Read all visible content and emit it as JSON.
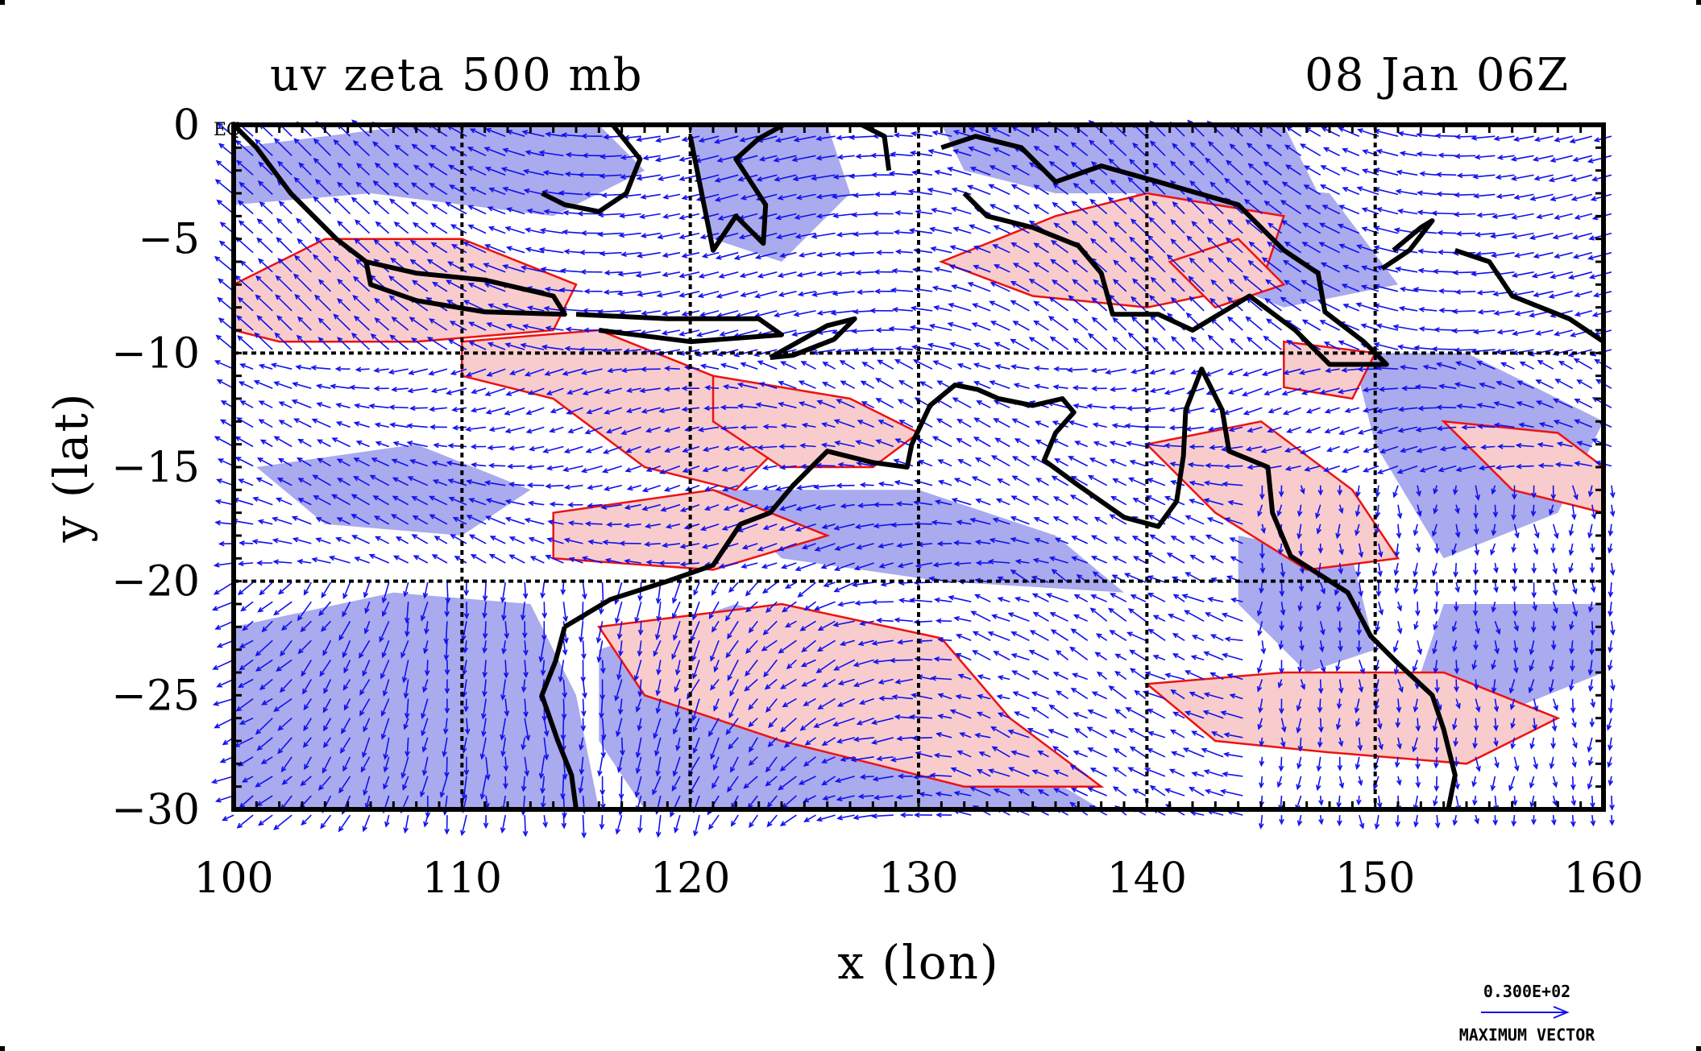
{
  "title_left": "uv zeta 500 mb",
  "title_right": "08 Jan 06Z",
  "equator_label": "EQ",
  "xlabel": "x (lon)",
  "ylabel": "y (lat)",
  "vector_legend": {
    "value": "0.300E+02",
    "label": "MAXIMUM VECTOR"
  },
  "colors": {
    "positive_fill": "#f8cccc",
    "positive_contour": "#ee1111",
    "negative_fill": "#aaaaee",
    "vector": "#1111ee",
    "coast": "#000000"
  },
  "chart_data": {
    "type": "map",
    "title": "uv zeta 500 mb",
    "xlabel": "x (lon)",
    "ylabel": "y (lat)",
    "xlim": [
      100,
      160
    ],
    "ylim": [
      -30,
      0
    ],
    "xticks": [
      100,
      110,
      120,
      130,
      140,
      150,
      160
    ],
    "yticks": [
      0,
      -5,
      -10,
      -15,
      -20,
      -25,
      -30
    ],
    "xtick_labels": [
      "100",
      "110",
      "120",
      "130",
      "140",
      "150",
      "160"
    ],
    "ytick_labels": [
      "0",
      "−5",
      "−10",
      "−15",
      "−20",
      "−25",
      "−30"
    ],
    "gridlines_lon": [
      110,
      120,
      130,
      140,
      150
    ],
    "gridlines_lat": [
      -10,
      -20
    ],
    "grid": true,
    "max_vector": "0.300E+02",
    "positive_vorticity_regions": [
      [
        [
          100,
          -7
        ],
        [
          104,
          -5
        ],
        [
          110,
          -5
        ],
        [
          115,
          -7
        ],
        [
          114,
          -9
        ],
        [
          108,
          -9.5
        ],
        [
          102,
          -9.5
        ],
        [
          100,
          -9
        ]
      ],
      [
        [
          110,
          -9.5
        ],
        [
          116,
          -9
        ],
        [
          121,
          -11
        ],
        [
          124,
          -14
        ],
        [
          122,
          -16
        ],
        [
          118,
          -15
        ],
        [
          114,
          -12
        ],
        [
          110,
          -11
        ]
      ],
      [
        [
          121,
          -11
        ],
        [
          127,
          -12
        ],
        [
          130,
          -13.5
        ],
        [
          128,
          -15
        ],
        [
          124,
          -15
        ],
        [
          121,
          -13
        ]
      ],
      [
        [
          114,
          -17
        ],
        [
          121,
          -16
        ],
        [
          126,
          -18
        ],
        [
          121,
          -19.5
        ],
        [
          114,
          -19
        ]
      ],
      [
        [
          116,
          -22
        ],
        [
          124,
          -21
        ],
        [
          131,
          -22.5
        ],
        [
          134,
          -26
        ],
        [
          138,
          -29
        ],
        [
          132,
          -29
        ],
        [
          124,
          -27
        ],
        [
          118,
          -25
        ]
      ],
      [
        [
          140,
          -14
        ],
        [
          145,
          -13
        ],
        [
          149,
          -16
        ],
        [
          151,
          -19
        ],
        [
          147,
          -19.5
        ],
        [
          143,
          -17
        ]
      ],
      [
        [
          140,
          -24.5
        ],
        [
          146,
          -24
        ],
        [
          153,
          -24
        ],
        [
          158,
          -26
        ],
        [
          154,
          -28
        ],
        [
          148,
          -27.5
        ],
        [
          143,
          -27
        ]
      ],
      [
        [
          153,
          -13
        ],
        [
          158,
          -13.5
        ],
        [
          160,
          -15
        ],
        [
          160,
          -17
        ],
        [
          156,
          -16
        ]
      ],
      [
        [
          131,
          -6
        ],
        [
          136,
          -4
        ],
        [
          140,
          -3
        ],
        [
          146,
          -4
        ],
        [
          145,
          -7
        ],
        [
          140,
          -8
        ],
        [
          135,
          -7.5
        ]
      ],
      [
        [
          146,
          -9.5
        ],
        [
          150,
          -10
        ],
        [
          149,
          -12
        ],
        [
          146,
          -11.5
        ]
      ],
      [
        [
          141,
          -6
        ],
        [
          144,
          -5
        ],
        [
          146,
          -7
        ],
        [
          143,
          -8
        ]
      ]
    ],
    "negative_vorticity_regions": [
      [
        [
          100,
          -22
        ],
        [
          107,
          -20.5
        ],
        [
          113,
          -21
        ],
        [
          115,
          -25
        ],
        [
          116,
          -30
        ],
        [
          100,
          -30
        ]
      ],
      [
        [
          116,
          -23
        ],
        [
          122,
          -21
        ],
        [
          128,
          -23
        ],
        [
          133,
          -27
        ],
        [
          138,
          -30
        ],
        [
          118,
          -30
        ],
        [
          116,
          -27
        ]
      ],
      [
        [
          120,
          0
        ],
        [
          126,
          0
        ],
        [
          127,
          -3
        ],
        [
          124,
          -6
        ],
        [
          121,
          -5
        ]
      ],
      [
        [
          131,
          0
        ],
        [
          146,
          0
        ],
        [
          148,
          -4
        ],
        [
          142,
          -3
        ],
        [
          136,
          -3
        ],
        [
          132,
          -2
        ]
      ],
      [
        [
          139,
          -2
        ],
        [
          148,
          -3
        ],
        [
          151,
          -7
        ],
        [
          146,
          -8
        ],
        [
          141,
          -6
        ]
      ],
      [
        [
          149,
          -10
        ],
        [
          154,
          -10
        ],
        [
          160,
          -13
        ],
        [
          158,
          -17
        ],
        [
          153,
          -19
        ],
        [
          150,
          -14
        ]
      ],
      [
        [
          144,
          -18
        ],
        [
          149,
          -19
        ],
        [
          150,
          -23
        ],
        [
          147,
          -24
        ],
        [
          144,
          -21
        ]
      ],
      [
        [
          153,
          -21
        ],
        [
          160,
          -21
        ],
        [
          160,
          -24
        ],
        [
          155,
          -26
        ],
        [
          152,
          -24
        ]
      ],
      [
        [
          100,
          -1
        ],
        [
          108,
          0
        ],
        [
          116,
          0
        ],
        [
          118,
          -2
        ],
        [
          114,
          -4
        ],
        [
          106,
          -3
        ],
        [
          100,
          -3.5
        ]
      ],
      [
        [
          121,
          -16
        ],
        [
          130,
          -16
        ],
        [
          136,
          -18
        ],
        [
          139,
          -20.5
        ],
        [
          131,
          -20
        ],
        [
          124,
          -19
        ]
      ],
      [
        [
          101,
          -15
        ],
        [
          108,
          -14
        ],
        [
          113,
          -16
        ],
        [
          110,
          -18
        ],
        [
          104,
          -17.5
        ]
      ]
    ],
    "coastlines": [
      [
        [
          100,
          0
        ],
        [
          101,
          -1
        ],
        [
          102.5,
          -3
        ],
        [
          104.5,
          -5
        ],
        [
          105.8,
          -6
        ]
      ],
      [
        [
          105.8,
          -6
        ],
        [
          108,
          -6.5
        ],
        [
          111,
          -6.8
        ],
        [
          114,
          -7.5
        ],
        [
          114.5,
          -8.3
        ],
        [
          111,
          -8.2
        ],
        [
          108,
          -7.7
        ],
        [
          106,
          -7
        ],
        [
          105.8,
          -6
        ]
      ],
      [
        [
          115,
          -8.3
        ],
        [
          119,
          -8.5
        ],
        [
          123,
          -8.5
        ],
        [
          124,
          -9.2
        ],
        [
          120,
          -9.5
        ],
        [
          116,
          -9
        ]
      ],
      [
        [
          123.5,
          -10.2
        ],
        [
          126,
          -8.8
        ],
        [
          127.2,
          -8.5
        ],
        [
          126.3,
          -9.4
        ],
        [
          124.5,
          -10.1
        ],
        [
          123.5,
          -10.2
        ]
      ],
      [
        [
          116.6,
          0
        ],
        [
          117.8,
          -1.5
        ],
        [
          117.2,
          -3
        ],
        [
          116,
          -3.8
        ],
        [
          114.5,
          -3.5
        ],
        [
          113.5,
          -3
        ]
      ],
      [
        [
          120,
          -0.5
        ],
        [
          120.5,
          -3
        ],
        [
          121,
          -5.5
        ],
        [
          122,
          -4
        ],
        [
          123.2,
          -5.2
        ],
        [
          123.3,
          -3.5
        ],
        [
          122,
          -1.5
        ],
        [
          123,
          -0.6
        ],
        [
          125,
          0.5
        ]
      ],
      [
        [
          127.5,
          0
        ],
        [
          128.5,
          -0.5
        ],
        [
          128.7,
          -2
        ]
      ],
      [
        [
          131,
          -1
        ],
        [
          132.5,
          -0.5
        ],
        [
          134.5,
          -1
        ],
        [
          136,
          -2.5
        ],
        [
          138,
          -1.8
        ],
        [
          140.5,
          -2.5
        ],
        [
          144,
          -3.5
        ],
        [
          146,
          -5.5
        ],
        [
          147.5,
          -6.5
        ],
        [
          147.8,
          -8.2
        ],
        [
          149.5,
          -9.5
        ],
        [
          150.5,
          -10.5
        ],
        [
          148,
          -10.5
        ],
        [
          146.5,
          -9
        ],
        [
          144.5,
          -7.5
        ],
        [
          142,
          -9
        ],
        [
          140.5,
          -8.3
        ],
        [
          138.5,
          -8.3
        ],
        [
          138,
          -6.5
        ],
        [
          137,
          -5.3
        ],
        [
          135,
          -4.5
        ],
        [
          133,
          -4
        ],
        [
          132,
          -3
        ]
      ],
      [
        [
          150.8,
          -5.5
        ],
        [
          152,
          -4.5
        ],
        [
          152.5,
          -4.2
        ],
        [
          151.5,
          -5.5
        ],
        [
          150.3,
          -6.3
        ]
      ],
      [
        [
          153.5,
          -5.5
        ],
        [
          155,
          -6
        ],
        [
          156,
          -7.5
        ],
        [
          158.5,
          -8.5
        ],
        [
          160,
          -9.5
        ]
      ],
      [
        [
          114.5,
          -22
        ],
        [
          114.1,
          -23.5
        ],
        [
          113.5,
          -25
        ],
        [
          114.2,
          -27
        ],
        [
          114.8,
          -28.5
        ],
        [
          115,
          -30
        ]
      ],
      [
        [
          114.5,
          -22
        ],
        [
          116.5,
          -20.8
        ],
        [
          119,
          -20
        ],
        [
          121,
          -19.3
        ],
        [
          122.2,
          -17.5
        ],
        [
          123.5,
          -17
        ],
        [
          124.5,
          -15.8
        ],
        [
          126,
          -14.3
        ],
        [
          128,
          -14.8
        ],
        [
          129.5,
          -15
        ],
        [
          129.7,
          -14
        ],
        [
          130.5,
          -12.3
        ],
        [
          131.6,
          -11.4
        ],
        [
          132.6,
          -11.6
        ],
        [
          133.5,
          -12
        ],
        [
          135,
          -12.3
        ],
        [
          136.3,
          -12
        ],
        [
          136.8,
          -12.6
        ],
        [
          136,
          -13.5
        ],
        [
          135.5,
          -14.7
        ],
        [
          137,
          -15.8
        ],
        [
          139,
          -17.2
        ],
        [
          140.5,
          -17.6
        ],
        [
          141.3,
          -16.5
        ],
        [
          141.6,
          -14.5
        ],
        [
          141.7,
          -12.5
        ],
        [
          142.4,
          -10.7
        ],
        [
          143.3,
          -12.5
        ],
        [
          143.6,
          -14.3
        ],
        [
          145.3,
          -15
        ],
        [
          145.5,
          -17
        ],
        [
          146.3,
          -18.9
        ],
        [
          148.8,
          -20.5
        ],
        [
          149.8,
          -22.4
        ],
        [
          151,
          -23.6
        ],
        [
          152.5,
          -25
        ],
        [
          153,
          -26.5
        ],
        [
          153.5,
          -28.5
        ],
        [
          153.2,
          -30
        ]
      ]
    ],
    "wind_field": "vector arrows on 1-degree grid, scaled to maximum vector 0.300E+02"
  }
}
